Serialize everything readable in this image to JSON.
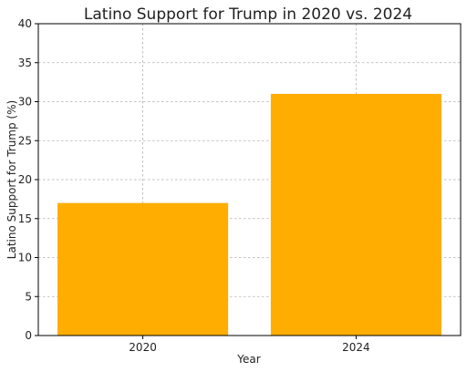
{
  "chart_data": {
    "type": "bar",
    "title": "Latino Support for Trump in 2020 vs. 2024",
    "xlabel": "Year",
    "ylabel": "Latino Support for Trump (%)",
    "categories": [
      "2020",
      "2024"
    ],
    "values": [
      17,
      31
    ],
    "ylim": [
      0,
      40
    ],
    "yticks": [
      0,
      5,
      10,
      15,
      20,
      25,
      30,
      35,
      40
    ],
    "grid": true,
    "bar_color": "#ffad00"
  }
}
